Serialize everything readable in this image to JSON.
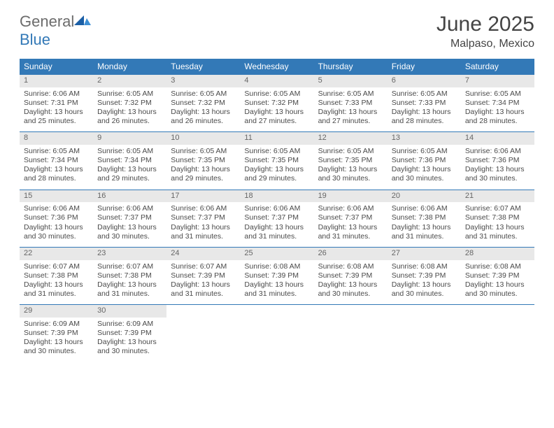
{
  "logo": {
    "general": "General",
    "blue": "Blue"
  },
  "title": "June 2025",
  "location": "Malpaso, Mexico",
  "colors": {
    "header_bg": "#3379b7",
    "header_fg": "#ffffff",
    "daynum_bg": "#e8e8e8",
    "text": "#4a4a4a",
    "logo_gray": "#6c6c6c",
    "logo_blue": "#3379b7",
    "page_bg": "#ffffff"
  },
  "font": {
    "family": "Arial",
    "body_size_pt": 8,
    "header_size_pt": 9,
    "title_size_pt": 22,
    "location_size_pt": 12
  },
  "weekdays": [
    "Sunday",
    "Monday",
    "Tuesday",
    "Wednesday",
    "Thursday",
    "Friday",
    "Saturday"
  ],
  "layout": {
    "columns": 7,
    "rows": 5,
    "start_weekday": 0,
    "days_in_month": 30
  },
  "days": [
    {
      "n": 1,
      "sunrise": "6:06 AM",
      "sunset": "7:31 PM",
      "daylight": "13 hours and 25 minutes."
    },
    {
      "n": 2,
      "sunrise": "6:05 AM",
      "sunset": "7:32 PM",
      "daylight": "13 hours and 26 minutes."
    },
    {
      "n": 3,
      "sunrise": "6:05 AM",
      "sunset": "7:32 PM",
      "daylight": "13 hours and 26 minutes."
    },
    {
      "n": 4,
      "sunrise": "6:05 AM",
      "sunset": "7:32 PM",
      "daylight": "13 hours and 27 minutes."
    },
    {
      "n": 5,
      "sunrise": "6:05 AM",
      "sunset": "7:33 PM",
      "daylight": "13 hours and 27 minutes."
    },
    {
      "n": 6,
      "sunrise": "6:05 AM",
      "sunset": "7:33 PM",
      "daylight": "13 hours and 28 minutes."
    },
    {
      "n": 7,
      "sunrise": "6:05 AM",
      "sunset": "7:34 PM",
      "daylight": "13 hours and 28 minutes."
    },
    {
      "n": 8,
      "sunrise": "6:05 AM",
      "sunset": "7:34 PM",
      "daylight": "13 hours and 28 minutes."
    },
    {
      "n": 9,
      "sunrise": "6:05 AM",
      "sunset": "7:34 PM",
      "daylight": "13 hours and 29 minutes."
    },
    {
      "n": 10,
      "sunrise": "6:05 AM",
      "sunset": "7:35 PM",
      "daylight": "13 hours and 29 minutes."
    },
    {
      "n": 11,
      "sunrise": "6:05 AM",
      "sunset": "7:35 PM",
      "daylight": "13 hours and 29 minutes."
    },
    {
      "n": 12,
      "sunrise": "6:05 AM",
      "sunset": "7:35 PM",
      "daylight": "13 hours and 30 minutes."
    },
    {
      "n": 13,
      "sunrise": "6:05 AM",
      "sunset": "7:36 PM",
      "daylight": "13 hours and 30 minutes."
    },
    {
      "n": 14,
      "sunrise": "6:06 AM",
      "sunset": "7:36 PM",
      "daylight": "13 hours and 30 minutes."
    },
    {
      "n": 15,
      "sunrise": "6:06 AM",
      "sunset": "7:36 PM",
      "daylight": "13 hours and 30 minutes."
    },
    {
      "n": 16,
      "sunrise": "6:06 AM",
      "sunset": "7:37 PM",
      "daylight": "13 hours and 30 minutes."
    },
    {
      "n": 17,
      "sunrise": "6:06 AM",
      "sunset": "7:37 PM",
      "daylight": "13 hours and 31 minutes."
    },
    {
      "n": 18,
      "sunrise": "6:06 AM",
      "sunset": "7:37 PM",
      "daylight": "13 hours and 31 minutes."
    },
    {
      "n": 19,
      "sunrise": "6:06 AM",
      "sunset": "7:37 PM",
      "daylight": "13 hours and 31 minutes."
    },
    {
      "n": 20,
      "sunrise": "6:06 AM",
      "sunset": "7:38 PM",
      "daylight": "13 hours and 31 minutes."
    },
    {
      "n": 21,
      "sunrise": "6:07 AM",
      "sunset": "7:38 PM",
      "daylight": "13 hours and 31 minutes."
    },
    {
      "n": 22,
      "sunrise": "6:07 AM",
      "sunset": "7:38 PM",
      "daylight": "13 hours and 31 minutes."
    },
    {
      "n": 23,
      "sunrise": "6:07 AM",
      "sunset": "7:38 PM",
      "daylight": "13 hours and 31 minutes."
    },
    {
      "n": 24,
      "sunrise": "6:07 AM",
      "sunset": "7:39 PM",
      "daylight": "13 hours and 31 minutes."
    },
    {
      "n": 25,
      "sunrise": "6:08 AM",
      "sunset": "7:39 PM",
      "daylight": "13 hours and 31 minutes."
    },
    {
      "n": 26,
      "sunrise": "6:08 AM",
      "sunset": "7:39 PM",
      "daylight": "13 hours and 30 minutes."
    },
    {
      "n": 27,
      "sunrise": "6:08 AM",
      "sunset": "7:39 PM",
      "daylight": "13 hours and 30 minutes."
    },
    {
      "n": 28,
      "sunrise": "6:08 AM",
      "sunset": "7:39 PM",
      "daylight": "13 hours and 30 minutes."
    },
    {
      "n": 29,
      "sunrise": "6:09 AM",
      "sunset": "7:39 PM",
      "daylight": "13 hours and 30 minutes."
    },
    {
      "n": 30,
      "sunrise": "6:09 AM",
      "sunset": "7:39 PM",
      "daylight": "13 hours and 30 minutes."
    }
  ],
  "labels": {
    "sunrise": "Sunrise:",
    "sunset": "Sunset:",
    "daylight": "Daylight:"
  }
}
